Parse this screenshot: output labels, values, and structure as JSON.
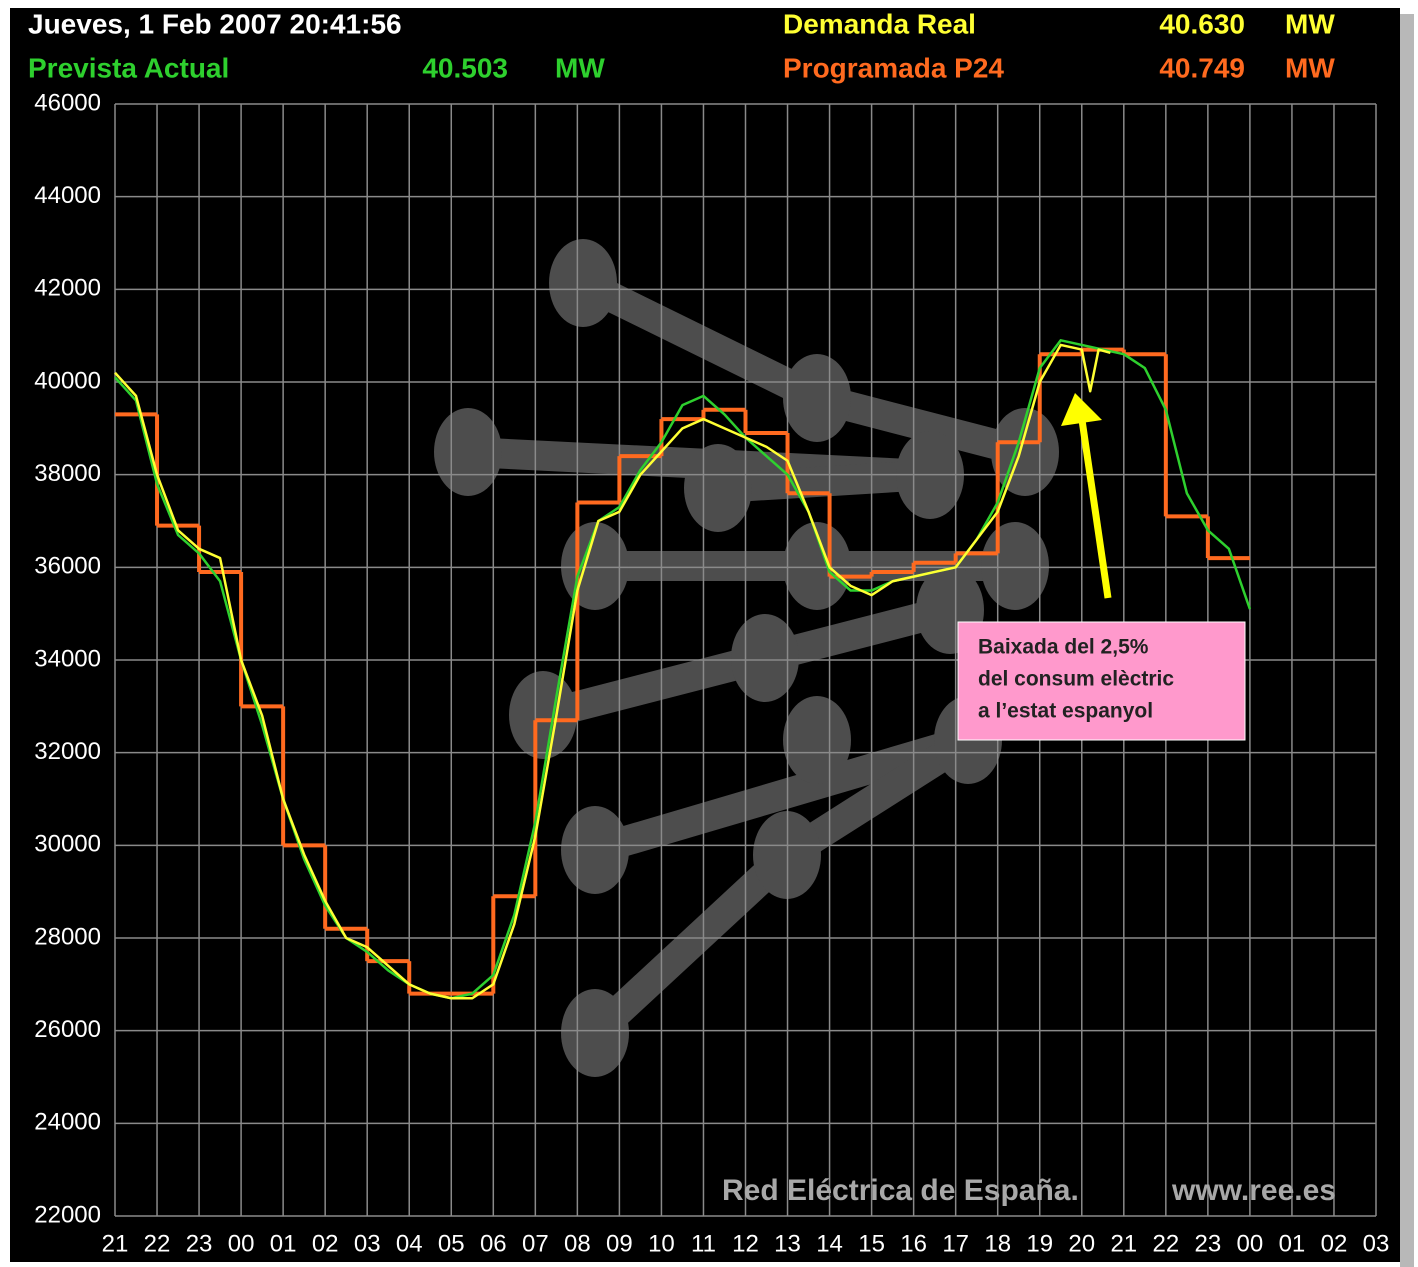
{
  "chart_data": {
    "type": "line",
    "title": "Jueves, 1 Feb 2007 20:41:56",
    "xlim": [
      0,
      30
    ],
    "xticks": [
      {
        "value": 0,
        "label": "21"
      },
      {
        "value": 1,
        "label": "22"
      },
      {
        "value": 2,
        "label": "23"
      },
      {
        "value": 3,
        "label": "00"
      },
      {
        "value": 4,
        "label": "01"
      },
      {
        "value": 5,
        "label": "02"
      },
      {
        "value": 6,
        "label": "03"
      },
      {
        "value": 7,
        "label": "04"
      },
      {
        "value": 8,
        "label": "05"
      },
      {
        "value": 9,
        "label": "06"
      },
      {
        "value": 10,
        "label": "07"
      },
      {
        "value": 11,
        "label": "08"
      },
      {
        "value": 12,
        "label": "09"
      },
      {
        "value": 13,
        "label": "10"
      },
      {
        "value": 14,
        "label": "11"
      },
      {
        "value": 15,
        "label": "12"
      },
      {
        "value": 16,
        "label": "13"
      },
      {
        "value": 17,
        "label": "14"
      },
      {
        "value": 18,
        "label": "15"
      },
      {
        "value": 19,
        "label": "16"
      },
      {
        "value": 20,
        "label": "17"
      },
      {
        "value": 21,
        "label": "18"
      },
      {
        "value": 22,
        "label": "19"
      },
      {
        "value": 23,
        "label": "20"
      },
      {
        "value": 24,
        "label": "21"
      },
      {
        "value": 25,
        "label": "22"
      },
      {
        "value": 26,
        "label": "23"
      },
      {
        "value": 27,
        "label": "00"
      },
      {
        "value": 28,
        "label": "01"
      },
      {
        "value": 29,
        "label": "02"
      },
      {
        "value": 30,
        "label": "03"
      }
    ],
    "ylim": [
      22000,
      46000
    ],
    "yticks": [
      22000,
      24000,
      26000,
      28000,
      30000,
      32000,
      34000,
      36000,
      38000,
      40000,
      42000,
      44000,
      46000
    ],
    "grid": true,
    "series": [
      {
        "name": "Prevista Actual",
        "color": "#2ed02e",
        "readout": "40.503",
        "unit": "MW",
        "style": "line",
        "x": [
          0,
          0.5,
          1,
          1.5,
          2,
          2.5,
          3,
          3.5,
          4,
          4.5,
          5,
          5.5,
          6,
          6.5,
          7,
          7.5,
          8,
          8.5,
          9,
          9.5,
          10,
          10.5,
          11,
          11.5,
          12,
          12.5,
          13,
          13.5,
          14,
          14.5,
          15,
          15.5,
          16,
          16.5,
          17,
          17.5,
          18,
          18.5,
          19,
          19.5,
          20,
          20.5,
          21,
          21.5,
          22,
          22.5,
          23,
          23.5,
          24,
          24.5,
          25,
          25.5,
          26,
          26.5,
          27
        ],
        "values": [
          40100,
          39600,
          37800,
          36700,
          36300,
          35700,
          34000,
          32600,
          31000,
          29700,
          28700,
          28000,
          27700,
          27300,
          27000,
          26800,
          26700,
          26800,
          27200,
          28500,
          30500,
          33200,
          35800,
          37000,
          37300,
          38100,
          38700,
          39500,
          39700,
          39300,
          38800,
          38400,
          38000,
          37200,
          35900,
          35500,
          35500,
          35700,
          35800,
          35900,
          36000,
          36600,
          37400,
          38700,
          40300,
          40900,
          40800,
          40700,
          40600,
          40300,
          39400,
          37600,
          36800,
          36400,
          35100
        ]
      },
      {
        "name": "Demanda Real",
        "color": "#ffff33",
        "readout": "40.630",
        "unit": "MW",
        "style": "line",
        "x": [
          0,
          0.5,
          1,
          1.5,
          2,
          2.5,
          3,
          3.5,
          4,
          4.5,
          5,
          5.5,
          6,
          6.5,
          7,
          7.5,
          8,
          8.5,
          9,
          9.5,
          10,
          10.5,
          11,
          11.5,
          12,
          12.5,
          13,
          13.5,
          14,
          14.5,
          15,
          15.5,
          16,
          16.5,
          17,
          17.5,
          18,
          18.5,
          19,
          19.5,
          20,
          20.5,
          21,
          21.5,
          22,
          22.5,
          23,
          23.2,
          23.4,
          23.68
        ],
        "values": [
          40200,
          39700,
          38000,
          36800,
          36400,
          36200,
          34000,
          32800,
          31000,
          29800,
          28800,
          28000,
          27800,
          27400,
          27000,
          26800,
          26700,
          26700,
          27000,
          28300,
          30200,
          32800,
          35500,
          37000,
          37200,
          38000,
          38500,
          39000,
          39200,
          39000,
          38800,
          38600,
          38300,
          37200,
          36000,
          35600,
          35400,
          35700,
          35800,
          35900,
          36000,
          36600,
          37200,
          38400,
          40000,
          40800,
          40700,
          39800,
          40700,
          40630
        ]
      },
      {
        "name": "Programada P24",
        "color": "#ff6a1f",
        "readout": "40.749",
        "unit": "MW",
        "style": "step",
        "x": [
          0,
          1,
          2,
          3,
          4,
          5,
          6,
          7,
          8,
          9,
          10,
          11,
          12,
          13,
          14,
          15,
          16,
          17,
          18,
          19,
          20,
          21,
          22,
          23,
          24,
          25,
          26
        ],
        "values": [
          39300,
          36900,
          35900,
          33000,
          30000,
          28200,
          27500,
          26800,
          26800,
          28900,
          32700,
          37400,
          38400,
          39200,
          39400,
          38900,
          37600,
          35800,
          35900,
          36100,
          36300,
          38700,
          40600,
          40700,
          40600,
          37100,
          36200
        ]
      }
    ],
    "annotation": [
      "Baixada del 2,5%",
      "del consum elèctric",
      "a l’estat espanyol"
    ],
    "source": "Red Eléctrica de España.",
    "url": "www.ree.es"
  }
}
